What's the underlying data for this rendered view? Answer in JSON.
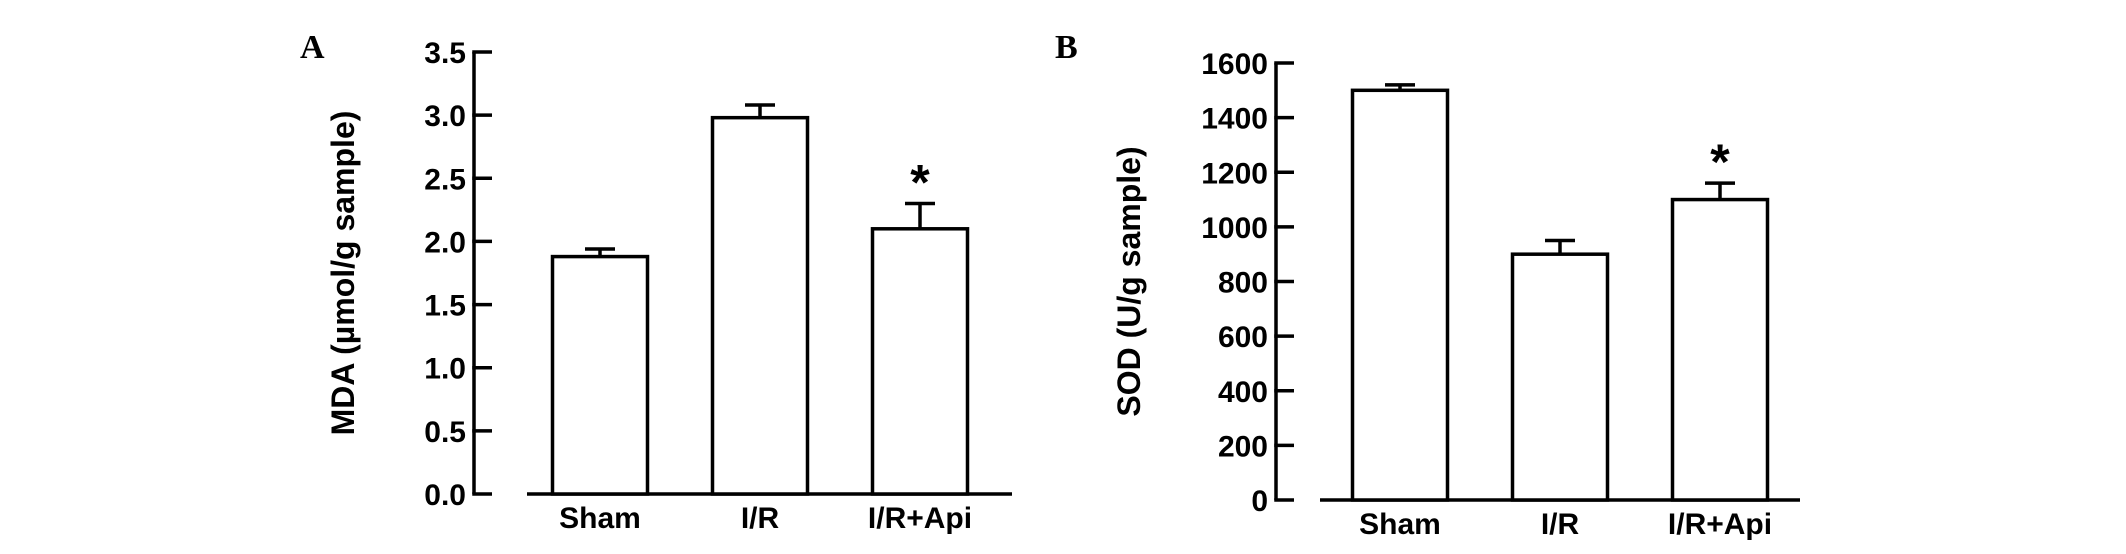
{
  "chart_data": [
    {
      "type": "bar",
      "panel": "A",
      "categories": [
        "Sham",
        "I/R",
        "I/R+Api"
      ],
      "values": [
        1.88,
        2.98,
        2.1
      ],
      "errors": [
        0.06,
        0.1,
        0.2
      ],
      "significance": [
        "",
        "",
        "*"
      ],
      "title": "",
      "xlabel": "",
      "ylabel": "MDA (µmol/g sample)",
      "ylim": [
        0,
        3.5
      ],
      "yticks": [
        "0.0",
        "0.5",
        "1.0",
        "1.5",
        "2.0",
        "2.5",
        "3.0",
        "3.5"
      ],
      "ytick_values": [
        0,
        0.5,
        1.0,
        1.5,
        2.0,
        2.5,
        3.0,
        3.5
      ],
      "grid": false,
      "bar_fill": "#ffffff",
      "bar_stroke": "#000000"
    },
    {
      "type": "bar",
      "panel": "B",
      "categories": [
        "Sham",
        "I/R",
        "I/R+Api"
      ],
      "values": [
        1500,
        900,
        1100
      ],
      "errors": [
        20,
        50,
        60
      ],
      "significance": [
        "",
        "",
        "*"
      ],
      "title": "",
      "xlabel": "",
      "ylabel": "SOD (U/g sample)",
      "ylim": [
        0,
        1600
      ],
      "yticks": [
        "0",
        "200",
        "400",
        "600",
        "800",
        "1000",
        "1200",
        "1400",
        "1600"
      ],
      "ytick_values": [
        0,
        200,
        400,
        600,
        800,
        1000,
        1200,
        1400,
        1600
      ],
      "grid": false,
      "bar_fill": "#ffffff",
      "bar_stroke": "#000000"
    }
  ]
}
